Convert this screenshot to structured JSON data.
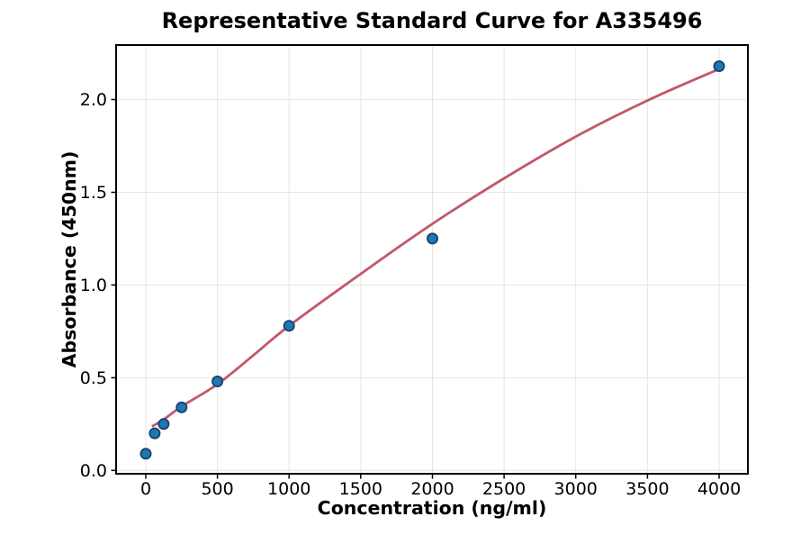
{
  "figure": {
    "background": "#ffffff",
    "plot_background": "#ffffff",
    "spine_color": "#000000",
    "grid_color": "#e6e6e6",
    "tick_color": "#000000"
  },
  "chart_data": {
    "type": "scatter",
    "title": "Representative Standard Curve for A335496",
    "xlabel": "Concentration (ng/ml)",
    "ylabel": "Absorbance (450nm)",
    "xlim": [
      -207,
      4201
    ],
    "ylim": [
      -0.018,
      2.294
    ],
    "grid": true,
    "legend": "none",
    "x_ticks": {
      "values": [
        0,
        500,
        1000,
        1500,
        2000,
        2500,
        3000,
        3500,
        4000
      ],
      "labels": [
        "0",
        "500",
        "1000",
        "1500",
        "2000",
        "2500",
        "3000",
        "3500",
        "4000"
      ]
    },
    "y_ticks": {
      "values": [
        0.0,
        0.5,
        1.0,
        1.5,
        2.0
      ],
      "labels": [
        "0.0",
        "0.5",
        "1.0",
        "1.5",
        "2.0"
      ]
    },
    "series": [
      {
        "name": "fit-curve",
        "kind": "line",
        "color": "#c2586a",
        "line_width": 2.8,
        "x": [
          50,
          125,
          250,
          500,
          750,
          1000,
          1500,
          2000,
          2500,
          3000,
          3500,
          4000
        ],
        "y": [
          0.24,
          0.275,
          0.345,
          0.465,
          0.62,
          0.78,
          1.06,
          1.33,
          1.575,
          1.8,
          1.995,
          2.165
        ]
      },
      {
        "name": "standard-points",
        "kind": "scatter",
        "marker_fill": "#1f77b4",
        "marker_edge": "#16436b",
        "marker_radius": 5.6,
        "marker_edge_width": 1.8,
        "points": [
          [
            0,
            0.09
          ],
          [
            62.5,
            0.2
          ],
          [
            125,
            0.25
          ],
          [
            250,
            0.34
          ],
          [
            500,
            0.48
          ],
          [
            1000,
            0.78
          ],
          [
            2000,
            1.25
          ],
          [
            4000,
            2.18
          ]
        ]
      }
    ]
  }
}
